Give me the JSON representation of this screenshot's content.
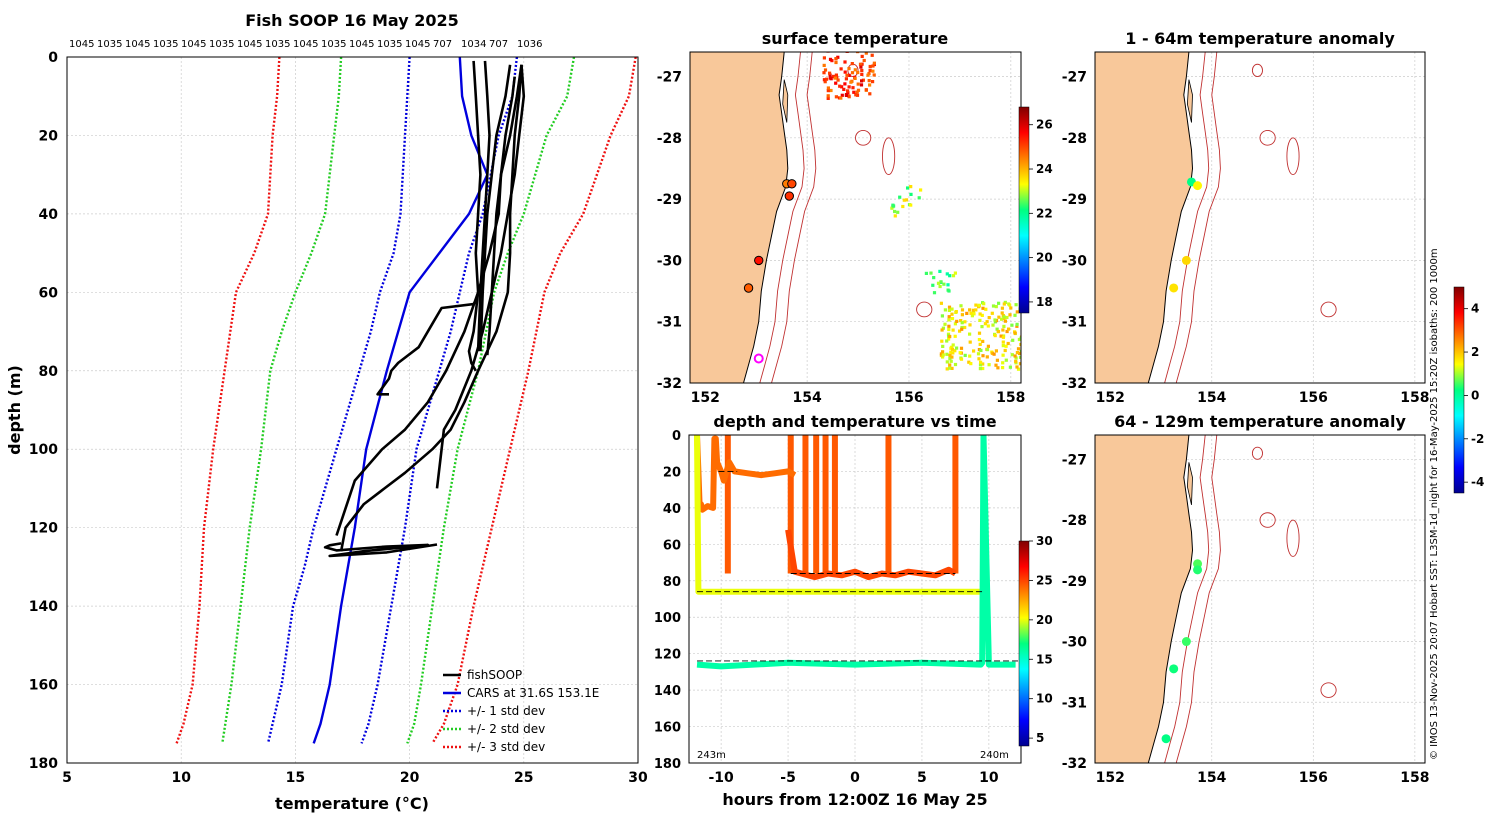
{
  "chart_data": [
    {
      "type": "line",
      "title": "Fish SOOP 16 May 2025",
      "xlabel": "temperature (°C)",
      "ylabel": "depth (m)",
      "xlim": [
        5,
        30
      ],
      "ylim": [
        180,
        0
      ],
      "xticks": [
        "5",
        "10",
        "15",
        "20",
        "25",
        "30"
      ],
      "yticks": [
        "0",
        "20",
        "40",
        "60",
        "80",
        "100",
        "120",
        "140",
        "160",
        "180"
      ],
      "top_labels": [
        "1045",
        "1035",
        "1045",
        "1035",
        "1045",
        "1035",
        "1045",
        "1035",
        "1045",
        "1035",
        "1045",
        "1035",
        "1045",
        "707",
        "1034",
        "707",
        "1036"
      ],
      "legend": [
        "fishSOOP",
        "CARS at 31.6S 153.1E",
        "+/- 1 std dev",
        "+/- 2 std dev",
        "+/- 3 std dev"
      ],
      "series": [
        {
          "name": "CARS at 31.6S 153.1E",
          "color": "#0000dd",
          "x": [
            22.2,
            22.3,
            22.7,
            23.4,
            22.6,
            21.3,
            20.0,
            19.0,
            18.1,
            17.6,
            17.0,
            16.5,
            16.1,
            15.8
          ],
          "y": [
            0,
            10,
            20,
            30,
            40,
            50,
            60,
            80,
            100,
            120,
            140,
            160,
            170,
            175
          ]
        },
        {
          "name": "CARS -1 std",
          "color": "#0000dd",
          "x": [
            20.0,
            19.9,
            19.8,
            19.6,
            19.3,
            18.7,
            18.3,
            17.8,
            16.8,
            15.8,
            15.4,
            14.9,
            14.4,
            14.0,
            13.8
          ],
          "y": [
            0,
            10,
            20,
            40,
            50,
            60,
            70,
            80,
            100,
            120,
            130,
            140,
            160,
            170,
            175
          ]
        },
        {
          "name": "CARS +1 std",
          "color": "#0000dd",
          "x": [
            24.7,
            24.5,
            23.9,
            23.2,
            22.6,
            22.2,
            21.8,
            21.3,
            20.8,
            20.3,
            19.8,
            19.2,
            18.6,
            18.2,
            17.9
          ],
          "y": [
            0,
            10,
            20,
            40,
            50,
            60,
            70,
            80,
            90,
            100,
            120,
            140,
            160,
            170,
            175
          ]
        },
        {
          "name": "CARS -2 std",
          "color": "#22cc22",
          "x": [
            17.0,
            16.9,
            16.7,
            16.3,
            15.7,
            15.0,
            14.4,
            13.9,
            13.5,
            13.0,
            12.6,
            12.2,
            11.8
          ],
          "y": [
            0,
            10,
            20,
            40,
            50,
            60,
            70,
            80,
            100,
            120,
            140,
            160,
            175
          ]
        },
        {
          "name": "CARS +2 std",
          "color": "#22cc22",
          "x": [
            27.2,
            26.9,
            26.0,
            25.0,
            24.3,
            23.7,
            23.0,
            22.1,
            21.5,
            21.0,
            20.5,
            20.2,
            19.9
          ],
          "y": [
            0,
            10,
            20,
            40,
            50,
            60,
            80,
            100,
            120,
            140,
            160,
            170,
            175
          ]
        },
        {
          "name": "CARS -3 std",
          "color": "#ee1111",
          "x": [
            14.3,
            14.2,
            14.0,
            13.8,
            13.2,
            12.4,
            11.9,
            11.4,
            11.0,
            10.8,
            10.5,
            10.1,
            9.8
          ],
          "y": [
            0,
            10,
            20,
            40,
            50,
            60,
            80,
            100,
            120,
            140,
            160,
            170,
            175
          ]
        },
        {
          "name": "CARS +3 std",
          "color": "#ee1111",
          "x": [
            29.9,
            29.6,
            28.8,
            27.6,
            26.6,
            25.9,
            25.2,
            24.4,
            23.6,
            22.8,
            22.1,
            21.5,
            21.0
          ],
          "y": [
            0,
            10,
            20,
            40,
            50,
            60,
            80,
            100,
            120,
            140,
            160,
            170,
            175
          ]
        },
        {
          "name": "fishSOOP",
          "color": "#000000",
          "x": [
            22.8,
            22.9,
            23.0,
            23.1,
            23.0,
            22.9,
            23.0,
            22.8,
            22.6,
            22.7,
            22.9
          ],
          "y": [
            1,
            10,
            20,
            30,
            40,
            50,
            60,
            70,
            75,
            78,
            80
          ]
        },
        {
          "name": "fishSOOP",
          "color": "#000000",
          "x": [
            23.3,
            23.4,
            23.5,
            23.4,
            23.3,
            23.2,
            23.1,
            23.0
          ],
          "y": [
            1,
            10,
            20,
            30,
            40,
            50,
            60,
            75
          ]
        },
        {
          "name": "fishSOOP",
          "color": "#000000",
          "x": [
            24.4,
            24.2,
            23.8,
            23.6,
            23.4,
            23.3,
            23.2,
            23.1
          ],
          "y": [
            2,
            10,
            20,
            30,
            40,
            50,
            60,
            75
          ]
        },
        {
          "name": "fishSOOP",
          "color": "#000000",
          "x": [
            24.9,
            24.7,
            24.4,
            24.0,
            23.8,
            23.7,
            23.6,
            23.5,
            23.4
          ],
          "y": [
            2,
            10,
            20,
            30,
            40,
            50,
            60,
            70,
            76
          ]
        },
        {
          "name": "fishSOOP",
          "color": "#000000",
          "x": [
            24.9,
            25.0,
            24.8,
            24.6,
            24.3,
            24.0,
            23.6,
            23.2,
            22.7,
            22.0,
            21.5,
            21.4,
            21.2
          ],
          "y": [
            2,
            10,
            20,
            30,
            40,
            50,
            60,
            70,
            80,
            90,
            95,
            100,
            110
          ]
        },
        {
          "name": "fishSOOP",
          "color": "#000000",
          "x": [
            24.9,
            24.8,
            24.6,
            24.5,
            24.4,
            24.4,
            24.3,
            23.8,
            23.0,
            22.4,
            21.8,
            21.0,
            19.8,
            18.9,
            18.0,
            17.2,
            17.0
          ],
          "y": [
            2,
            10,
            20,
            30,
            40,
            50,
            60,
            70,
            80,
            88,
            95,
            100,
            106,
            110,
            114,
            120,
            126
          ]
        },
        {
          "name": "fishSOOP",
          "color": "#000000",
          "x": [
            24.6,
            24.5,
            24.2,
            24.0,
            23.9,
            23.5,
            23.0,
            22.4,
            21.6,
            20.8,
            19.8,
            18.8,
            17.6,
            16.8
          ],
          "y": [
            5,
            10,
            20,
            30,
            40,
            50,
            60,
            70,
            80,
            88,
            95,
            100,
            108,
            122
          ]
        },
        {
          "name": "fishSOOP",
          "color": "#000000",
          "x": [
            22.9,
            22.8,
            21.4,
            21.0,
            20.4,
            19.5,
            19.2,
            19.1,
            18.6,
            19.1
          ],
          "y": [
            62,
            63,
            64,
            68,
            74,
            78,
            80,
            82,
            86,
            86
          ]
        },
        {
          "name": "fishSOOP",
          "color": "#000000",
          "x": [
            17.0,
            16.5,
            16.3,
            16.8,
            19.0,
            20.8,
            18.0,
            16.5,
            19.0,
            21.2
          ],
          "y": [
            124,
            124.5,
            125,
            125.8,
            124.8,
            124.4,
            126.0,
            127.2,
            126.3,
            124.3
          ]
        }
      ]
    },
    {
      "type": "scatter",
      "title": "surface temperature",
      "xticks": [
        "152",
        "154",
        "156",
        "158"
      ],
      "yticks": [
        "-27",
        "-28",
        "-29",
        "-30",
        "-31",
        "-32"
      ],
      "xlim": [
        151.7,
        158.2
      ],
      "ylim": [
        -32.0,
        -26.6
      ],
      "colorbar": {
        "ticks": [
          "26",
          "24",
          "22",
          "20",
          "18"
        ],
        "range": [
          17.5,
          26.8
        ]
      },
      "stations": [
        {
          "lon": 153.6,
          "lat": -28.75,
          "value": 24.5
        },
        {
          "lon": 153.7,
          "lat": -28.75,
          "value": 25.0
        },
        {
          "lon": 153.65,
          "lat": -28.95,
          "value": 25.2
        },
        {
          "lon": 153.05,
          "lat": -30.0,
          "value": 25.5
        },
        {
          "lon": 152.85,
          "lat": -30.45,
          "value": 24.8
        }
      ],
      "marker": {
        "lon": 153.05,
        "lat": -31.6
      }
    },
    {
      "type": "scatter",
      "title": "1 - 64m temperature anomaly",
      "xticks": [
        "152",
        "154",
        "156",
        "158"
      ],
      "yticks": [
        "-27",
        "-28",
        "-29",
        "-30",
        "-31",
        "-32"
      ],
      "xlim": [
        151.7,
        158.2
      ],
      "ylim": [
        -32.0,
        -26.6
      ],
      "stations": [
        {
          "lon": 153.6,
          "lat": -28.72,
          "value": 0.2
        },
        {
          "lon": 153.72,
          "lat": -28.78,
          "value": 1.5
        },
        {
          "lon": 153.5,
          "lat": -30.0,
          "value": 1.8
        },
        {
          "lon": 153.25,
          "lat": -30.45,
          "value": 1.7
        }
      ]
    },
    {
      "type": "scatter",
      "title": "depth and temperature vs time",
      "xlabel": "hours from 12:00Z 16 May 25",
      "xticks": [
        "-10",
        "-5",
        "0",
        "5",
        "10"
      ],
      "yticks": [
        "0",
        "20",
        "40",
        "60",
        "80",
        "100",
        "120",
        "140",
        "160",
        "180"
      ],
      "xlim": [
        -12.4,
        12.4
      ],
      "ylim": [
        180,
        0
      ],
      "colorbar": {
        "ticks": [
          "30",
          "25",
          "20",
          "15",
          "10",
          "5"
        ],
        "range": [
          4,
          30
        ]
      },
      "annotations": [
        "243m",
        "240m"
      ],
      "tracks": [
        {
          "x": [
            -11.8,
            -11.7,
            -11.6,
            -11.5,
            -11.4,
            -11.0,
            -10.6,
            -10.5,
            -10.4,
            -10.3,
            -10.0,
            -9.8,
            -9.4,
            -9.0,
            -8.0,
            -7.0,
            -6.0,
            -5.0,
            -4.5
          ],
          "y": [
            0,
            20,
            40,
            38,
            41,
            39,
            40,
            2,
            2,
            15,
            20,
            25,
            15,
            20,
            21,
            22,
            21,
            20,
            22
          ],
          "value": 24
        },
        {
          "x": [
            -11.8,
            -11.7,
            9.6
          ],
          "y": [
            0,
            86,
            86
          ],
          "value": 20
        },
        {
          "x": [
            -5.0,
            -4.5,
            -3.0,
            -2.0,
            -1.0,
            0.0,
            1.0,
            2.0,
            3.0,
            4.0,
            5.0,
            6.0,
            7.0,
            7.5
          ],
          "y": [
            52,
            75,
            78,
            76,
            77,
            75,
            78,
            76,
            77,
            75,
            76,
            77,
            74,
            76
          ],
          "value": 25
        },
        {
          "x": [
            -11.8,
            -10.0,
            -5.0,
            0.0,
            5.0,
            9.4,
            9.5,
            9.6,
            10.0,
            12.0
          ],
          "y": [
            126,
            127,
            125,
            126,
            125,
            126,
            125,
            0,
            126,
            126
          ],
          "value": 16
        }
      ],
      "drops": [
        -9.5,
        -4.8,
        -3.7,
        -2.9,
        -2.2,
        -1.5,
        2.5,
        7.5
      ]
    },
    {
      "type": "scatter",
      "title": "64 - 129m temperature anomaly",
      "xticks": [
        "152",
        "154",
        "156",
        "158"
      ],
      "yticks": [
        "-27",
        "-28",
        "-29",
        "-30",
        "-31",
        "-32"
      ],
      "xlim": [
        151.7,
        158.2
      ],
      "ylim": [
        -32.0,
        -26.6
      ],
      "colorbar": {
        "ticks": [
          "4",
          "2",
          "0",
          "-2",
          "-4"
        ],
        "range": [
          -4.5,
          5.0
        ]
      },
      "stations": [
        {
          "lon": 153.72,
          "lat": -28.72,
          "value": 0.6
        },
        {
          "lon": 153.72,
          "lat": -28.82,
          "value": 0.4
        },
        {
          "lon": 153.5,
          "lat": -30.0,
          "value": 0.5
        },
        {
          "lon": 153.25,
          "lat": -30.45,
          "value": 0.3
        },
        {
          "lon": 153.1,
          "lat": -31.6,
          "value": 0.2
        }
      ]
    }
  ],
  "credit": "© IMOS 13-Nov-2025 20:07 Hobart SST: L3SM-1d_night for 16-May-2025 15:20Z isobaths: 200  1000m",
  "colors": {
    "land": "#f8c89a",
    "coast": "#000000",
    "isobath": "#c03030"
  }
}
